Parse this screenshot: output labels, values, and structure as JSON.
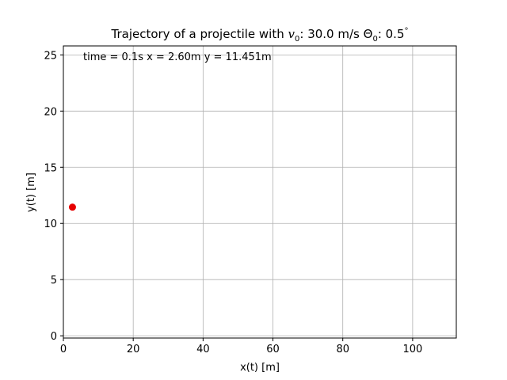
{
  "chart_data": {
    "type": "scatter",
    "title": {
      "prefix": "Trajectory of a projectile with ",
      "v_symbol": "v",
      "v_sub": "0",
      "v_value": ": 30.0 m/s  ",
      "theta_symbol": "Θ",
      "theta_sub": "0",
      "theta_value": ": 0.5",
      "degree": "°"
    },
    "annotation": "time = 0.1s  x = 2.60m   y = 11.451m",
    "xlabel": "x(t) [m]",
    "ylabel": "y(t) [m]",
    "xlim": [
      0,
      112.5
    ],
    "ylim": [
      -0.2,
      25.8
    ],
    "xticks": [
      0,
      20,
      40,
      60,
      80,
      100
    ],
    "yticks": [
      0,
      5,
      10,
      15,
      20,
      25
    ],
    "grid": true,
    "series": [
      {
        "points": [
          {
            "x": 2.6,
            "y": 11.451
          }
        ]
      }
    ],
    "colors": {
      "marker": "#e60000",
      "grid": "#b0b0b0",
      "axes": "#000000"
    }
  }
}
